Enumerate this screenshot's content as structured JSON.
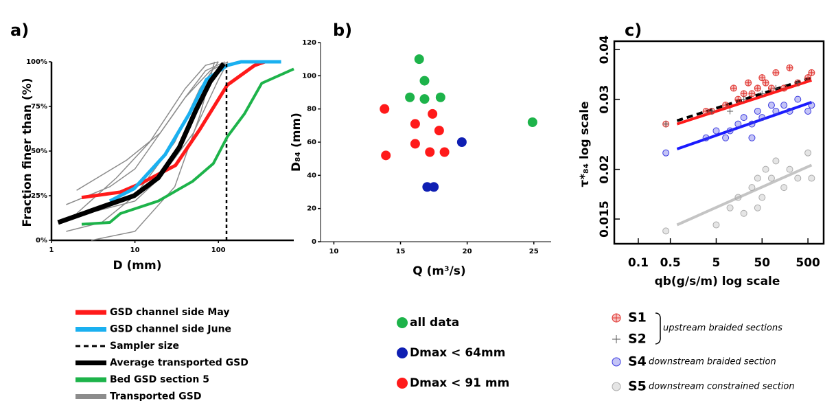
{
  "chart_data": [
    {
      "type": "line",
      "title": "a)",
      "xlabel": "D (mm)",
      "ylabel": "Fraction finer than (%)",
      "xscale": "log",
      "xlim": [
        1,
        800
      ],
      "ylim": [
        0,
        100
      ],
      "xticks": [
        1,
        10,
        100
      ],
      "yticks": [
        {
          "value": 0,
          "label": "0%"
        },
        {
          "value": 25,
          "label": "25%"
        },
        {
          "value": 50,
          "label": "50%"
        },
        {
          "value": 75,
          "label": "75%"
        },
        {
          "value": 100,
          "label": "100%"
        }
      ],
      "series": [
        {
          "name": "GSD channel side May",
          "color": "#ff1a1a",
          "x": [
            2.3,
            6.7,
            11.9,
            30.6,
            59.7,
            128,
            272,
            362
          ],
          "values": [
            24,
            27,
            32,
            42,
            62,
            87,
            98,
            100
          ]
        },
        {
          "name": "GSD channel side June",
          "color": "#1ab0f0",
          "x": [
            5,
            9.8,
            23,
            45,
            72,
            128,
            187,
            565
          ],
          "values": [
            22,
            29,
            48,
            71,
            90,
            98,
            100,
            100
          ]
        },
        {
          "name": "Sampler size",
          "color": "#000000",
          "dash": true,
          "x": [
            125,
            125
          ],
          "values": [
            0,
            100
          ]
        },
        {
          "name": "Average transported GSD",
          "color": "#000000",
          "x": [
            1.2,
            4.2,
            9.8,
            19,
            34,
            54,
            80,
            116
          ],
          "values": [
            10,
            19,
            25,
            35,
            52,
            73,
            89,
            99
          ]
        },
        {
          "name": "Bed GSD section 5",
          "color": "#1db34a",
          "x": [
            2.3,
            5,
            6.7,
            19,
            49,
            87,
            128,
            206,
            331,
            800
          ],
          "values": [
            9,
            10,
            15,
            22,
            33,
            43,
            58,
            71,
            88,
            96
          ]
        },
        {
          "name": "Transported GSD",
          "color": "#8c8c8c",
          "lines": [
            {
              "x": [
                1.5,
                5,
                10,
                20,
                40,
                80,
                130
              ],
              "values": [
                20,
                30,
                40,
                60,
                80,
                95,
                100
              ]
            },
            {
              "x": [
                1.5,
                4,
                10,
                30,
                60,
                100
              ],
              "values": [
                5,
                10,
                25,
                55,
                85,
                100
              ]
            },
            {
              "x": [
                2,
                8,
                20,
                40,
                70,
                120
              ],
              "values": [
                28,
                45,
                60,
                80,
                95,
                100
              ]
            },
            {
              "x": [
                1.5,
                10,
                20,
                50,
                100,
                130
              ],
              "values": [
                12,
                22,
                35,
                60,
                90,
                100
              ]
            },
            {
              "x": [
                3,
                10,
                30,
                60,
                90
              ],
              "values": [
                0,
                5,
                30,
                70,
                100
              ]
            },
            {
              "x": [
                2,
                6,
                15,
                40,
                70,
                100
              ],
              "values": [
                15,
                35,
                55,
                85,
                98,
                100
              ]
            }
          ]
        }
      ]
    },
    {
      "type": "scatter",
      "title": "b)",
      "xlabel": "Q (m³/s)",
      "ylabel": "D₈₄ (mm)",
      "xlim": [
        9,
        26.3
      ],
      "ylim": [
        0,
        120
      ],
      "xticks": [
        10,
        15,
        20,
        25
      ],
      "yticks": [
        0,
        20,
        40,
        60,
        80,
        100,
        120
      ],
      "series": [
        {
          "name": "all data",
          "color": "#1db34a",
          "x": [
            16.4,
            16.8,
            15.7,
            16.8,
            18.0,
            24.9
          ],
          "values": [
            110,
            97,
            87,
            86,
            87,
            72
          ]
        },
        {
          "name": "Dmax < 64mm",
          "color": "#0f1fb3",
          "x": [
            17.0,
            17.5,
            19.6
          ],
          "values": [
            33,
            33,
            60
          ]
        },
        {
          "name": "Dmax < 91 mm",
          "color": "#ff1a1a",
          "x": [
            13.8,
            13.9,
            16.1,
            17.4,
            16.1,
            17.2,
            17.9,
            18.3
          ],
          "values": [
            80,
            52,
            71,
            77,
            59,
            54,
            67,
            54
          ]
        }
      ]
    },
    {
      "type": "scatter",
      "title": "c)",
      "xlabel": "qb(g/s/m) log scale",
      "ylabel": "τ*₈₄ log scale",
      "xscale": "log",
      "yscale": "log",
      "xlim": [
        0.03,
        1100
      ],
      "ylim": [
        0.013,
        0.042
      ],
      "xticks": [
        0.1,
        0.5,
        5,
        50,
        500
      ],
      "yticks": [
        0.015,
        0.02,
        0.03,
        0.04
      ],
      "series": [
        {
          "name": "S1",
          "color": "#e0322d",
          "marker": "circle-cross",
          "x": [
            0.4,
            3,
            4,
            8,
            12,
            15,
            20,
            25,
            30,
            40,
            50,
            60,
            80,
            100,
            150,
            200,
            300,
            500,
            600
          ],
          "values": [
            0.026,
            0.028,
            0.028,
            0.029,
            0.032,
            0.03,
            0.031,
            0.033,
            0.031,
            0.032,
            0.034,
            0.033,
            0.032,
            0.035,
            0.032,
            0.036,
            0.033,
            0.034,
            0.035
          ]
        },
        {
          "name": "S2",
          "color": "#555555",
          "marker": "plus",
          "x": [
            0.4,
            4,
            10,
            20,
            50,
            100,
            300
          ],
          "values": [
            0.026,
            0.028,
            0.028,
            0.03,
            0.031,
            0.032,
            0.033
          ]
        },
        {
          "name": "S4",
          "color": "#3a3ae0",
          "marker": "circle",
          "x": [
            0.4,
            3,
            5,
            8,
            10,
            15,
            20,
            30,
            40,
            50,
            80,
            100,
            150,
            200,
            300,
            500,
            600,
            30
          ],
          "values": [
            0.022,
            0.024,
            0.025,
            0.024,
            0.025,
            0.026,
            0.027,
            0.026,
            0.028,
            0.027,
            0.029,
            0.028,
            0.029,
            0.028,
            0.03,
            0.028,
            0.029,
            0.024
          ]
        },
        {
          "name": "S5",
          "color": "#aaaaaa",
          "marker": "circle",
          "x": [
            0.4,
            5,
            10,
            15,
            20,
            30,
            40,
            50,
            60,
            80,
            100,
            150,
            200,
            300,
            500,
            600,
            40
          ],
          "values": [
            0.014,
            0.0145,
            0.016,
            0.017,
            0.0155,
            0.018,
            0.019,
            0.017,
            0.02,
            0.019,
            0.021,
            0.018,
            0.02,
            0.019,
            0.022,
            0.019,
            0.016
          ]
        }
      ],
      "fit_lines": [
        {
          "color": "#000000",
          "dash": true,
          "x": [
            0.7,
            600
          ],
          "values": [
            0.0265,
            0.034
          ]
        },
        {
          "color": "#ff1a1a",
          "x": [
            0.7,
            600
          ],
          "values": [
            0.026,
            0.0335
          ]
        },
        {
          "color": "#1a1aff",
          "x": [
            0.7,
            600
          ],
          "values": [
            0.0225,
            0.0295
          ]
        },
        {
          "color": "#c4c4c4",
          "x": [
            0.7,
            600
          ],
          "values": [
            0.0145,
            0.0205
          ]
        }
      ],
      "annotations": [
        "upstream braided sections",
        "downstream braided section",
        "downstream constrained section"
      ]
    }
  ]
}
